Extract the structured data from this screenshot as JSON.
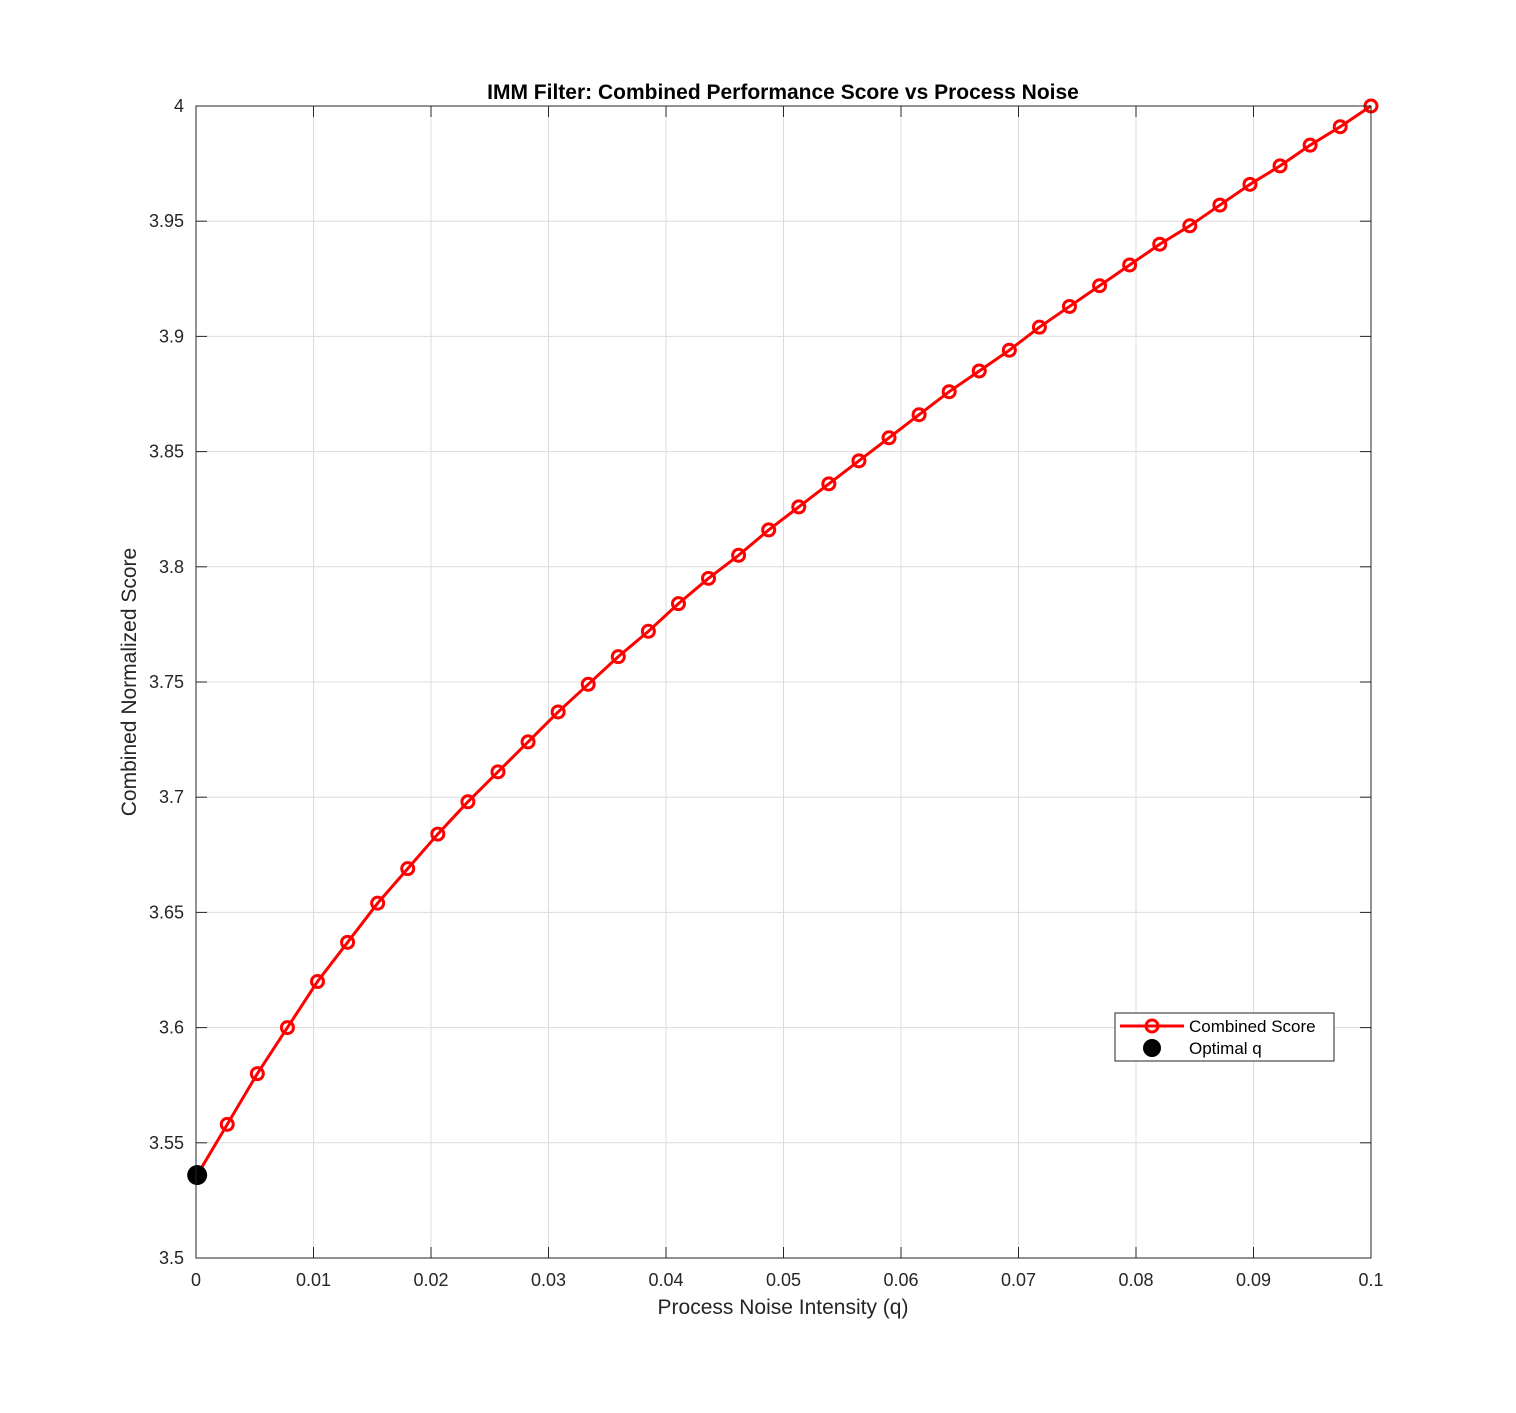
{
  "chart_data": {
    "type": "line",
    "title": "IMM Filter: Combined Performance Score vs Process Noise",
    "xlabel": "Process Noise Intensity (q)",
    "ylabel": "Combined Normalized Score",
    "xlim": [
      0,
      0.1
    ],
    "ylim": [
      3.5,
      4.0
    ],
    "x_ticks": [
      0,
      0.01,
      0.02,
      0.03,
      0.04,
      0.05,
      0.06,
      0.07,
      0.08,
      0.09,
      0.1
    ],
    "x_tick_labels": [
      "0",
      "0.01",
      "0.02",
      "0.03",
      "0.04",
      "0.05",
      "0.06",
      "0.07",
      "0.08",
      "0.09",
      "0.1"
    ],
    "y_ticks": [
      3.5,
      3.55,
      3.6,
      3.65,
      3.7,
      3.75,
      3.8,
      3.85,
      3.9,
      3.95,
      4.0
    ],
    "y_tick_labels": [
      "3.5",
      "3.55",
      "3.6",
      "3.65",
      "3.7",
      "3.75",
      "3.8",
      "3.85",
      "3.9",
      "3.95",
      "4"
    ],
    "grid": true,
    "legend_position": "lower-right",
    "series": [
      {
        "name": "Combined Score",
        "color": "#ff0000",
        "marker": "circle-open",
        "x": [
          0.0001,
          0.00266,
          0.00522,
          0.00778,
          0.01034,
          0.0129,
          0.01546,
          0.01802,
          0.02058,
          0.02314,
          0.0257,
          0.02826,
          0.03082,
          0.03338,
          0.03594,
          0.0385,
          0.04106,
          0.04362,
          0.04618,
          0.04874,
          0.0513,
          0.05386,
          0.05642,
          0.05898,
          0.06154,
          0.0641,
          0.06666,
          0.06922,
          0.07178,
          0.07434,
          0.0769,
          0.07946,
          0.08202,
          0.08458,
          0.08714,
          0.0897,
          0.09226,
          0.09482,
          0.09738,
          0.1
        ],
        "values": [
          3.536,
          3.558,
          3.58,
          3.6,
          3.62,
          3.637,
          3.654,
          3.669,
          3.684,
          3.698,
          3.711,
          3.724,
          3.737,
          3.749,
          3.761,
          3.772,
          3.784,
          3.795,
          3.805,
          3.816,
          3.826,
          3.836,
          3.846,
          3.856,
          3.866,
          3.876,
          3.885,
          3.894,
          3.904,
          3.913,
          3.922,
          3.931,
          3.94,
          3.948,
          3.957,
          3.966,
          3.974,
          3.983,
          3.991,
          4.0
        ]
      },
      {
        "name": "Optimal q",
        "color": "#000000",
        "marker": "circle-filled",
        "x": [
          0.0001
        ],
        "values": [
          3.536
        ]
      }
    ]
  }
}
